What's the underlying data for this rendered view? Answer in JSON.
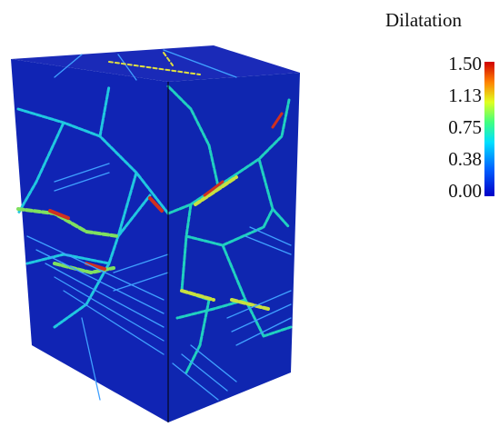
{
  "colorbar": {
    "title": "Dilatation",
    "ticks": [
      "1.50",
      "1.13",
      "0.75",
      "0.38",
      "0.00"
    ]
  }
}
